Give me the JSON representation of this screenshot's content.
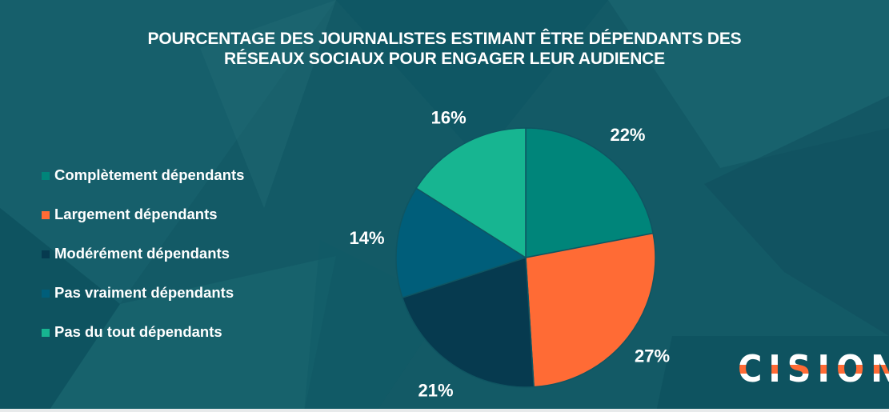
{
  "chart_data": {
    "type": "pie",
    "title": "POURCENTAGE DES JOURNALISTES ESTIMANT ÊTRE DÉPENDANTS DES RÉSEAUX SOCIAUX POUR ENGAGER LEUR AUDIENCE",
    "title_lines": [
      "POURCENTAGE DES JOURNALISTES ESTIMANT ÊTRE DÉPENDANTS DES",
      "RÉSEAUX SOCIAUX POUR ENGAGER LEUR AUDIENCE"
    ],
    "categories": [
      "Complètement dépendants",
      "Largement dépendants",
      "Modérément dépendants",
      "Pas vraiment dépendants",
      "Pas du tout dépendants"
    ],
    "values": [
      22,
      27,
      21,
      14,
      16
    ],
    "labels": [
      "22%",
      "27%",
      "21%",
      "14%",
      "16%"
    ],
    "colors": [
      "#00857a",
      "#ff6b35",
      "#063a4f",
      "#005e7a",
      "#17b591"
    ],
    "unit": "%",
    "legend_position": "left",
    "start_angle": "12 o'clock, clockwise"
  },
  "branding": {
    "logo_text": "CISION",
    "logo_mark": "®",
    "accent": "#ff6b35"
  }
}
